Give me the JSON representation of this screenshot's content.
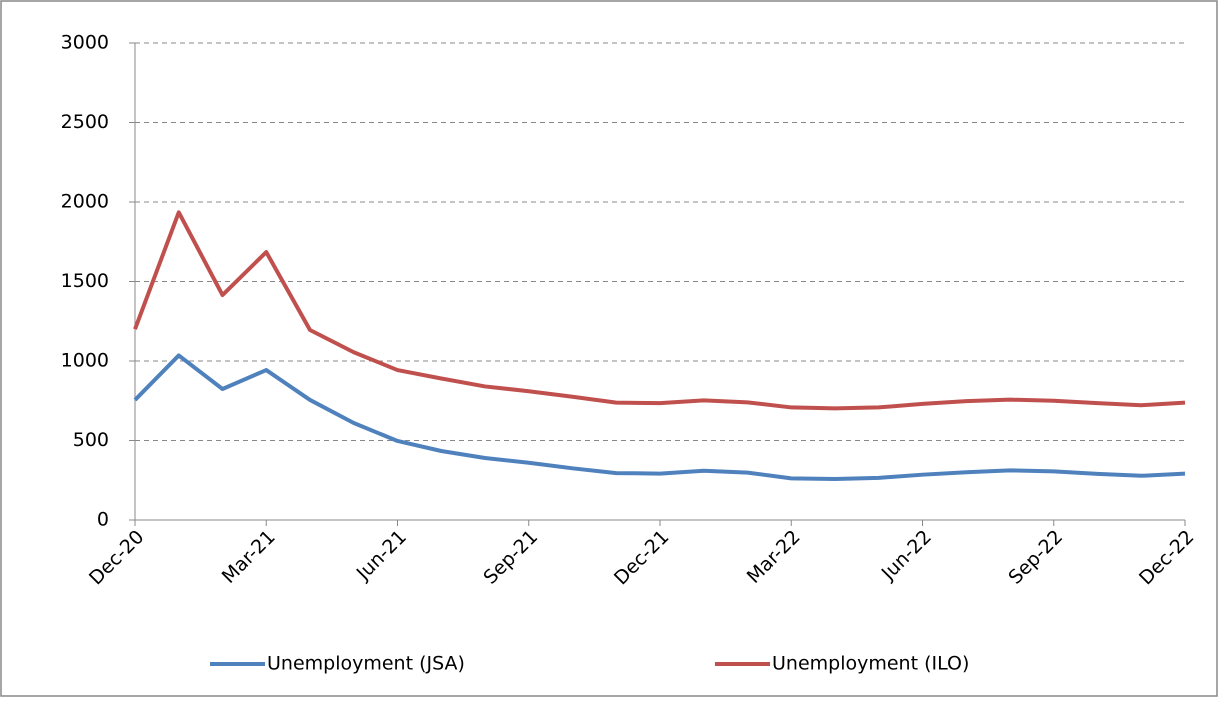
{
  "chart_data": {
    "type": "line",
    "categories": [
      "Dec-20",
      null,
      null,
      "Mar-21",
      null,
      null,
      "Jun-21",
      null,
      null,
      "Sep-21",
      null,
      null,
      "Dec-21",
      null,
      null,
      "Mar-22",
      null,
      null,
      "Jun-22",
      null,
      null,
      "Sep-22",
      null,
      null,
      "Dec-22"
    ],
    "series": [
      {
        "name": "Unemployment (JSA)",
        "color": "#4f81bd",
        "values": [
          755,
          1035,
          824,
          943,
          755,
          610,
          497,
          434,
          390,
          360,
          325,
          295,
          292,
          310,
          298,
          262,
          258,
          265,
          285,
          300,
          312,
          306,
          290,
          278,
          292
        ]
      },
      {
        "name": "Unemployment (ILO)",
        "color": "#c0504d",
        "values": [
          1200,
          1935,
          1415,
          1685,
          1195,
          1055,
          943,
          890,
          840,
          810,
          775,
          738,
          735,
          752,
          740,
          708,
          702,
          708,
          730,
          748,
          757,
          750,
          735,
          722,
          738
        ]
      }
    ],
    "ylim": [
      0,
      3000
    ],
    "yticks": [
      0,
      500,
      1000,
      1500,
      2000,
      2500,
      3000
    ],
    "grid": true,
    "legend": "bottom"
  }
}
